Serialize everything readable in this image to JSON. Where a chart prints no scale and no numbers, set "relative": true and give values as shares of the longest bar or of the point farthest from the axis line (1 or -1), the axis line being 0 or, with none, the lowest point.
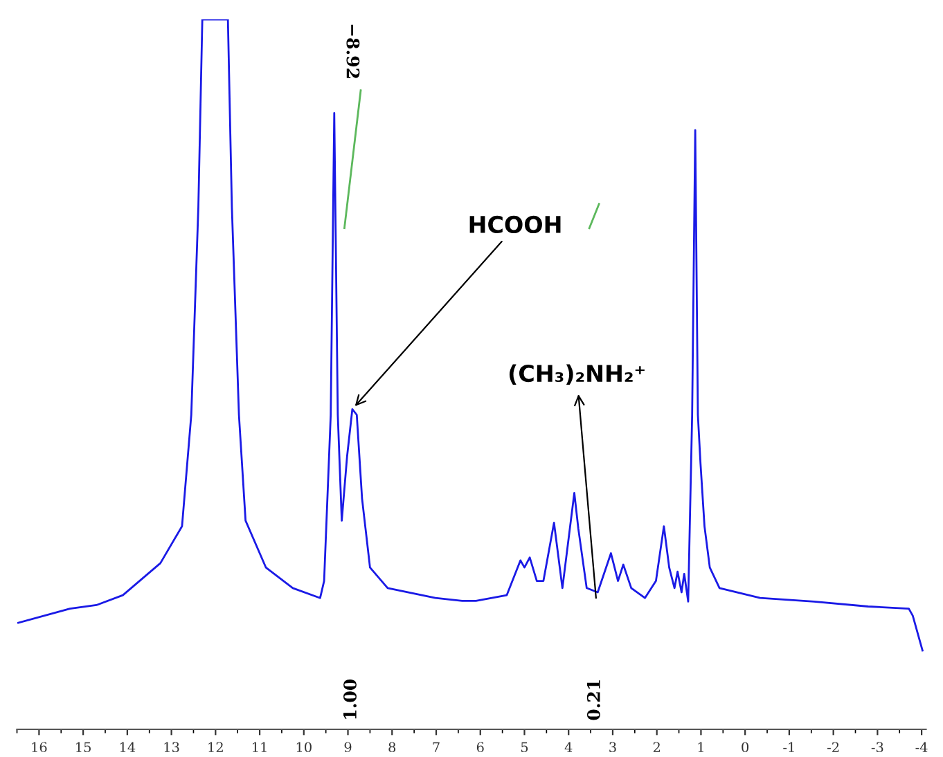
{
  "chart_data": {
    "type": "line",
    "relative": true,
    "xlim": [
      16.5,
      -4.1
    ],
    "xticks": [
      16,
      15,
      14,
      13,
      12,
      11,
      10,
      9,
      8,
      7,
      6,
      5,
      4,
      3,
      2,
      1,
      0,
      -1,
      -2,
      -3,
      -4
    ],
    "grid": false,
    "legend": false,
    "marker": "none",
    "line_style": "solid",
    "series": [
      {
        "color": "#1a1ae6",
        "x": [
          16.47,
          15.3,
          14.7,
          14.1,
          13.25,
          12.76,
          12.55,
          12.39,
          12.3,
          11.72,
          11.63,
          11.47,
          11.32,
          10.86,
          10.25,
          9.63,
          9.54,
          9.39,
          9.31,
          9.23,
          9.14,
          9.02,
          8.9,
          8.8,
          8.68,
          8.5,
          8.1,
          7.02,
          6.41,
          6.1,
          5.4,
          5.09,
          5.0,
          4.88,
          4.72,
          4.57,
          4.33,
          4.14,
          3.87,
          3.78,
          3.59,
          3.34,
          3.04,
          2.88,
          2.76,
          2.58,
          2.27,
          2.02,
          1.84,
          1.72,
          1.6,
          1.53,
          1.44,
          1.38,
          1.29,
          1.2,
          1.13,
          1.07,
          1.01,
          0.92,
          0.8,
          0.58,
          -0.34,
          -1.56,
          -2.79,
          -3.71,
          -3.8,
          -4.02
        ],
        "values": [
          0.15,
          0.17,
          0.175,
          0.189,
          0.234,
          0.286,
          0.443,
          0.735,
          1,
          1,
          0.735,
          0.443,
          0.294,
          0.228,
          0.199,
          0.185,
          0.209,
          0.443,
          0.868,
          0.443,
          0.294,
          0.384,
          0.451,
          0.443,
          0.325,
          0.228,
          0.199,
          0.185,
          0.181,
          0.181,
          0.189,
          0.238,
          0.228,
          0.242,
          0.209,
          0.209,
          0.291,
          0.199,
          0.333,
          0.283,
          0.199,
          0.193,
          0.248,
          0.209,
          0.232,
          0.199,
          0.185,
          0.209,
          0.286,
          0.228,
          0.199,
          0.222,
          0.193,
          0.219,
          0.18,
          0.443,
          0.844,
          0.443,
          0.374,
          0.286,
          0.228,
          0.199,
          0.185,
          0.18,
          0.173,
          0.17,
          0.16,
          0.111
        ]
      },
      {
        "color": "#5cb85c",
        "x": [
          9.08,
          8.71
        ],
        "values": [
          0.706,
          0.9
        ]
      },
      {
        "color": "#5cb85c",
        "x": [
          3.53,
          3.31
        ],
        "values": [
          0.706,
          0.74
        ]
      }
    ],
    "annotations": [
      "−8.92",
      {
        "text": "HCOOH",
        "x": 8.9,
        "y": 0.451
      },
      "(CH₃)₂NH₂⁺",
      "1.00",
      "0.21"
    ]
  }
}
